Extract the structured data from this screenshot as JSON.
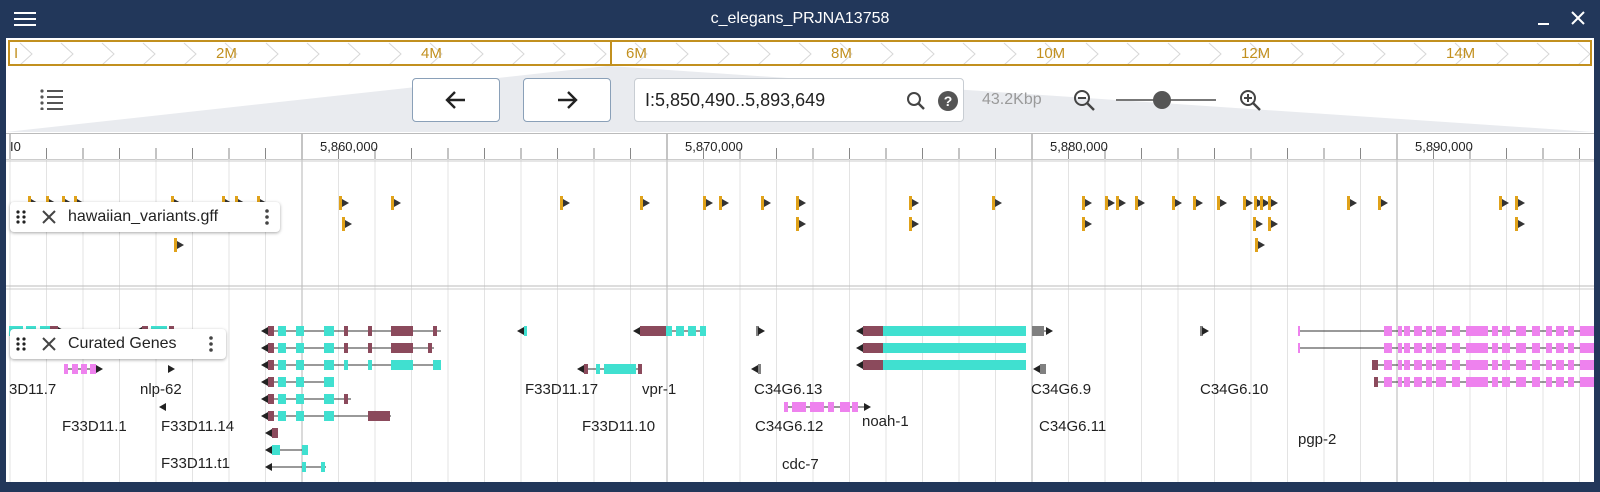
{
  "window": {
    "title": "c_elegans_PRJNA13758"
  },
  "overview": {
    "labels": [
      "I",
      "2M",
      "4M",
      "6M",
      "8M",
      "10M",
      "12M",
      "14M"
    ]
  },
  "navigation": {
    "location": "I:5,850,490..5,893,649",
    "bp_per_view": "43.2Kbp"
  },
  "ruler": {
    "labels": [
      "I0",
      "5,860,000",
      "5,870,000",
      "5,880,000",
      "5,890,000"
    ]
  },
  "tracks": {
    "variants": {
      "name": "hawaiian_variants.gff"
    },
    "genes": {
      "name": "Curated Genes",
      "gene_labels": [
        "3D11.7",
        "nlp-62",
        "F33D11.1",
        "F33D11.14",
        "F33D11.t1",
        "F33D11.17",
        "vpr-1",
        "F33D11.10",
        "C34G6.13",
        "C34G6.12",
        "cdc-7",
        "noah-1",
        "C34G6.9",
        "C34G6.11",
        "C34G6.10",
        "pgp-2"
      ]
    }
  },
  "colors": {
    "titlebar": "#22375a",
    "overview_accent": "#c2901f",
    "variant": "#e0a21a",
    "exon_coding": "#40e0d0",
    "utr": "#8b4a5c",
    "noncoding_exon": "#ee82ee",
    "pseudogene": "#808080"
  },
  "icons": [
    "hamburger-icon",
    "minimize-icon",
    "close-icon",
    "track-list-icon",
    "arrow-left-icon",
    "arrow-right-icon",
    "search-icon",
    "help-icon",
    "zoom-out-icon",
    "zoom-in-icon",
    "drag-handle-icon",
    "kebab-icon"
  ]
}
